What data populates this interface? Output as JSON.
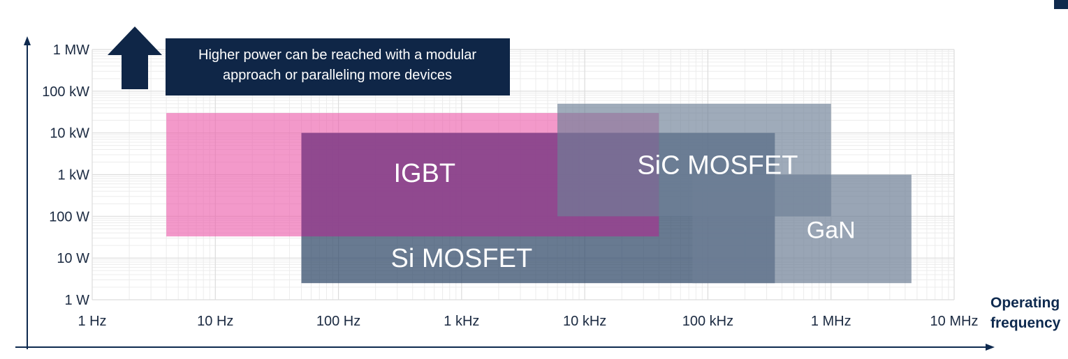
{
  "chart_data": {
    "type": "area",
    "title": "",
    "xlabel": "Operating frequency",
    "ylabel": "",
    "x_scale": "log",
    "y_scale": "log",
    "xlim": [
      "1 Hz",
      "10 MHz"
    ],
    "ylim": [
      "1 W",
      "1 MW"
    ],
    "xlim_hz": [
      1,
      10000000
    ],
    "ylim_w": [
      1,
      1000000
    ],
    "x_ticks": [
      {
        "value": 1,
        "label": "1 Hz"
      },
      {
        "value": 10,
        "label": "10 Hz"
      },
      {
        "value": 100,
        "label": "100 Hz"
      },
      {
        "value": 1000,
        "label": "1 kHz"
      },
      {
        "value": 10000,
        "label": "10 kHz"
      },
      {
        "value": 100000,
        "label": "100 kHz"
      },
      {
        "value": 1000000,
        "label": "1 MHz"
      },
      {
        "value": 10000000,
        "label": "10 MHz"
      }
    ],
    "y_ticks": [
      {
        "value": 1,
        "label": "1 W"
      },
      {
        "value": 10,
        "label": "10 W"
      },
      {
        "value": 100,
        "label": "100 W"
      },
      {
        "value": 1000,
        "label": "1 kW"
      },
      {
        "value": 10000,
        "label": "10 kW"
      },
      {
        "value": 100000,
        "label": "100 kW"
      },
      {
        "value": 1000000,
        "label": "1 MW"
      }
    ],
    "grid": true,
    "regions": [
      {
        "name": "IGBT-outer",
        "label": "",
        "x_range_hz": [
          4,
          40000
        ],
        "y_range_w": [
          33,
          30000
        ],
        "color": "#ec5aa9",
        "opacity": 0.62
      },
      {
        "name": "Si MOSFET",
        "label": "Si MOSFET",
        "x_range_hz": [
          50,
          350000
        ],
        "y_range_w": [
          2.5,
          10000
        ],
        "color": "#2e4766",
        "opacity": 0.72,
        "label_at_hz": 1000,
        "label_at_w": 10
      },
      {
        "name": "IGBT",
        "label": "IGBT",
        "x_range_hz": [
          50,
          40000
        ],
        "y_range_w": [
          33,
          10000
        ],
        "color": "#b4389a",
        "opacity": 0.55,
        "label_at_hz": 500,
        "label_at_w": 1100
      },
      {
        "name": "SiC MOSFET",
        "label": "SiC MOSFET",
        "x_range_hz": [
          6000,
          1000000
        ],
        "y_range_w": [
          100,
          50000
        ],
        "color": "#6d7f96",
        "opacity": 0.66,
        "label_at_hz": 120000,
        "label_at_w": 1700
      },
      {
        "name": "GaN",
        "label": "GaN",
        "x_range_hz": [
          75000,
          4500000
        ],
        "y_range_w": [
          2.5,
          1000
        ],
        "color": "#6d7f96",
        "opacity": 0.7,
        "label_at_hz": 1000000,
        "label_at_w": 50
      }
    ],
    "annotations": [
      {
        "type": "up-arrow",
        "name": "higher-power-arrow"
      },
      {
        "type": "callout",
        "name": "higher-power-note",
        "lines": [
          "Higher power can be reached with a modular",
          "approach or paralleling more devices"
        ]
      }
    ]
  },
  "colors": {
    "axis": "#0e2a4f",
    "grid_major": "#dcdcdc",
    "grid_minor": "#ececec",
    "callout_bg": "#0f2647",
    "arrow": "#0f2647"
  }
}
